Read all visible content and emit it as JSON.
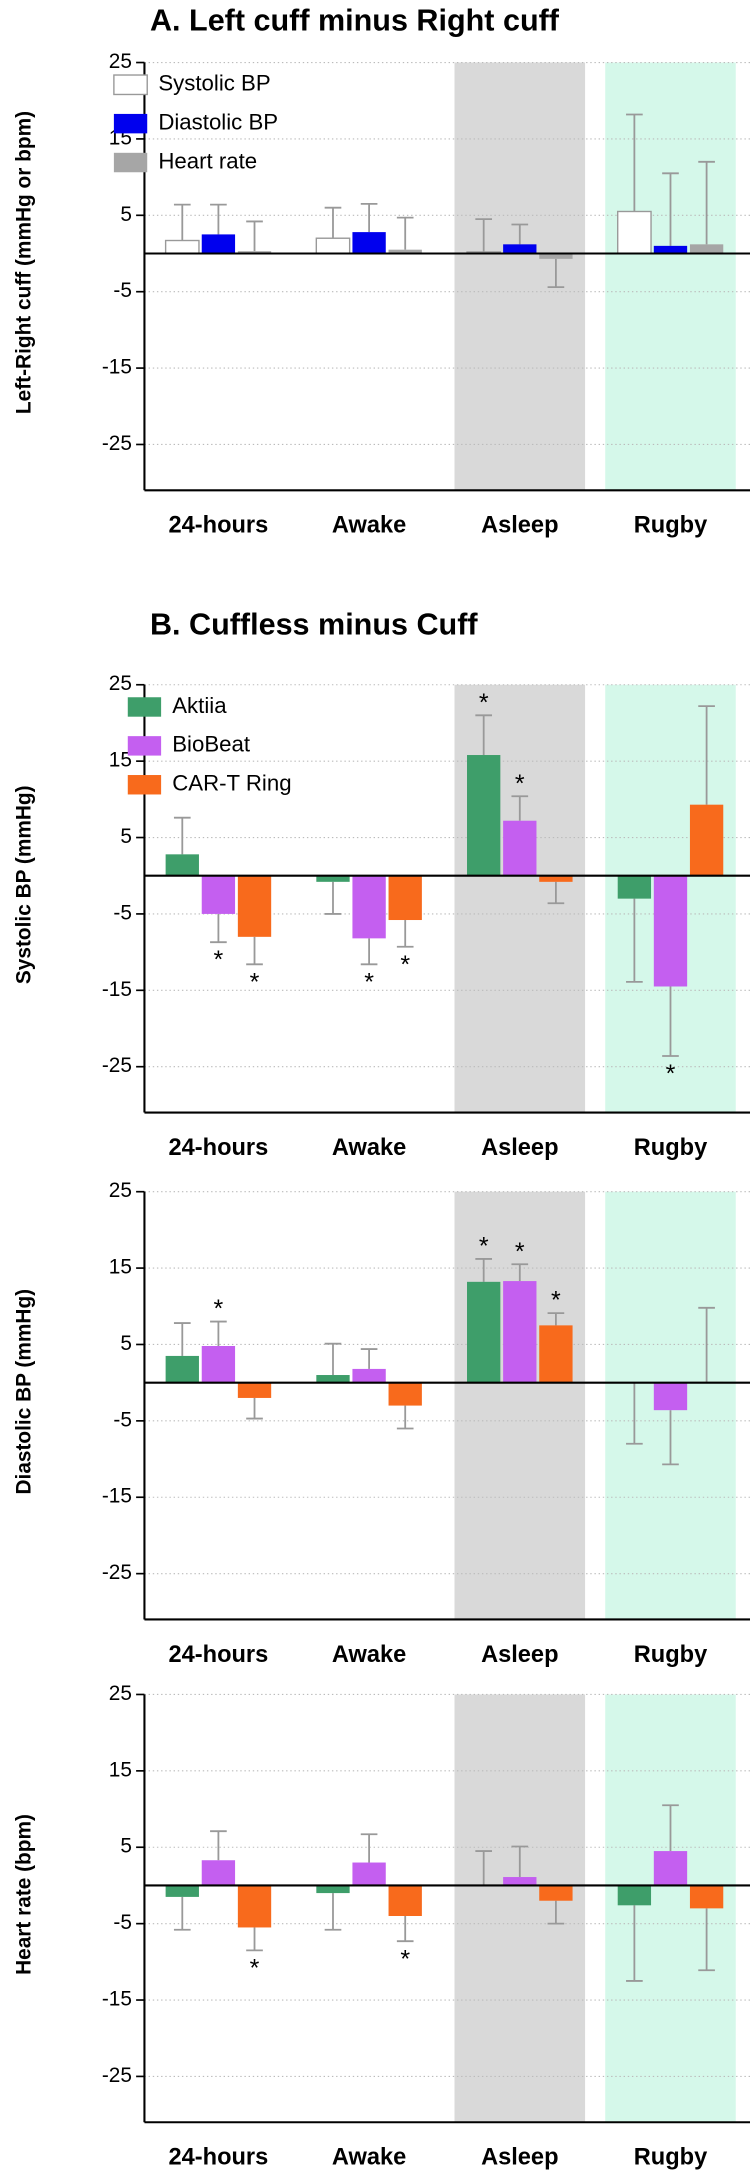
{
  "chart_data": [
    {
      "type": "bar",
      "title": "A. Left cuff minus Right cuff",
      "ylabel": "Left-Right cuff (mmHg or bpm)",
      "categories": [
        "24-hours",
        "Awake",
        "Asleep",
        "Rugby"
      ],
      "band_colors": [
        null,
        null,
        "#d9d9d9",
        "#d5f8ea"
      ],
      "ylim": [
        -31,
        25
      ],
      "yticks": [
        -25,
        -15,
        -5,
        5,
        15,
        25
      ],
      "grid": true,
      "legend": "upper left",
      "series": [
        {
          "name": "Systolic BP",
          "color": "#ffffff",
          "values": [
            1.7,
            2,
            0.2,
            5.5
          ],
          "errors": [
            4.7,
            4,
            4.3,
            12.7
          ]
        },
        {
          "name": "Diastolic BP",
          "color": "#0000ee",
          "values": [
            2.5,
            2.8,
            1.2,
            1
          ],
          "errors": [
            3.9,
            3.7,
            2.6,
            9.5
          ]
        },
        {
          "name": "Heart rate",
          "color": "#a6a6a6",
          "values": [
            0.3,
            0.5,
            -0.7,
            1.2
          ],
          "errors": [
            3.9,
            4.2,
            3.7,
            10.8
          ]
        }
      ]
    },
    {
      "type": "bar",
      "title": "B.  Cuffless minus Cuff",
      "ylabel": "Systolic BP (mmHg)",
      "categories": [
        "24-hours",
        "Awake",
        "Asleep",
        "Rugby"
      ],
      "band_colors": [
        null,
        null,
        "#d9d9d9",
        "#d5f8ea"
      ],
      "ylim": [
        -31,
        25
      ],
      "yticks": [
        -25,
        -15,
        -5,
        5,
        15,
        25
      ],
      "grid": true,
      "legend": "upper left",
      "series": [
        {
          "name": "Aktiia",
          "color": "#3e9e6a",
          "values": [
            2.8,
            -0.8,
            15.8,
            -3
          ],
          "errors": [
            4.8,
            4.2,
            5.2,
            10.9
          ],
          "annotations": [
            null,
            null,
            "*",
            null
          ]
        },
        {
          "name": "BioBeat",
          "color": "#c45ff0",
          "values": [
            -5,
            -8.2,
            7.2,
            -14.5
          ],
          "errors": [
            3.7,
            3.4,
            3.2,
            9.1
          ],
          "annotations": [
            "*",
            "*",
            "*",
            "*"
          ]
        },
        {
          "name": "CAR-T Ring",
          "color": "#f86a1c",
          "values": [
            -8,
            -5.8,
            -0.8,
            9.3
          ],
          "errors": [
            3.6,
            3.5,
            2.8,
            12.9
          ],
          "annotations": [
            "*",
            "*",
            null,
            null
          ]
        }
      ]
    },
    {
      "type": "bar",
      "ylabel": "Diastolic BP (mmHg)",
      "categories": [
        "24-hours",
        "Awake",
        "Asleep",
        "Rugby"
      ],
      "band_colors": [
        null,
        null,
        "#d9d9d9",
        "#d5f8ea"
      ],
      "ylim": [
        -31,
        25
      ],
      "yticks": [
        -25,
        -15,
        -5,
        5,
        15,
        25
      ],
      "grid": true,
      "series": [
        {
          "color": "#3e9e6a",
          "values": [
            3.5,
            1,
            13.2,
            -0.1
          ],
          "errors": [
            4.3,
            4.1,
            3,
            7.9
          ],
          "annotations": [
            null,
            null,
            "*",
            null
          ]
        },
        {
          "color": "#c45ff0",
          "values": [
            4.8,
            1.8,
            13.3,
            -3.6
          ],
          "errors": [
            3.2,
            2.6,
            2.2,
            7.1
          ],
          "annotations": [
            "*",
            null,
            "*",
            null
          ]
        },
        {
          "color": "#f86a1c",
          "values": [
            -2,
            -3,
            7.5,
            0.1
          ],
          "errors": [
            2.7,
            3,
            1.6,
            9.7
          ],
          "annotations": [
            null,
            null,
            "*",
            null
          ]
        }
      ]
    },
    {
      "type": "bar",
      "ylabel": "Heart rate (bpm)",
      "categories": [
        "24-hours",
        "Awake",
        "Asleep",
        "Rugby"
      ],
      "band_colors": [
        null,
        null,
        "#d9d9d9",
        "#d5f8ea"
      ],
      "ylim": [
        -31,
        25
      ],
      "yticks": [
        -25,
        -15,
        -5,
        5,
        15,
        25
      ],
      "grid": true,
      "series": [
        {
          "color": "#3e9e6a",
          "values": [
            -1.5,
            -1,
            0.1,
            -2.6
          ],
          "errors": [
            4.3,
            4.8,
            4.4,
            9.9
          ]
        },
        {
          "color": "#c45ff0",
          "values": [
            3.3,
            3,
            1.1,
            4.5
          ],
          "errors": [
            3.8,
            3.7,
            4,
            6
          ]
        },
        {
          "color": "#f86a1c",
          "values": [
            -5.5,
            -4,
            -2,
            -3
          ],
          "errors": [
            3,
            3.3,
            3,
            8.1
          ],
          "annotations": [
            "*",
            "*",
            null,
            null
          ]
        }
      ]
    }
  ]
}
